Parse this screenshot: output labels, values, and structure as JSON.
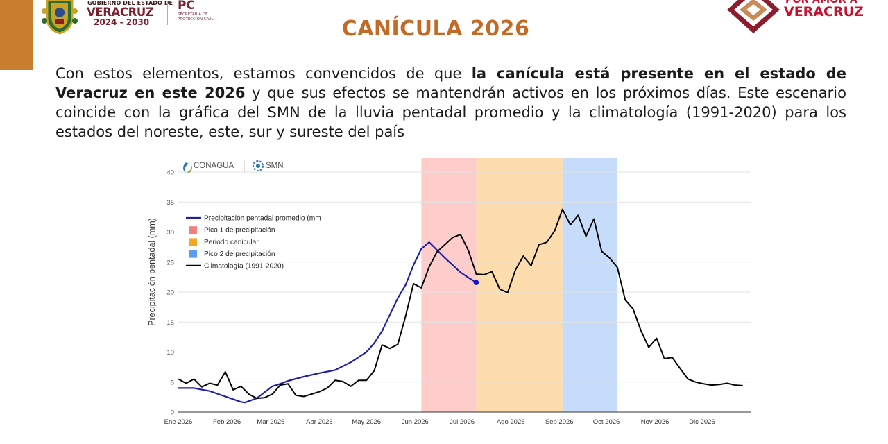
{
  "colors": {
    "accent_bar": "#c87d2f",
    "title": "#c46a27",
    "gov_wine": "#7b1e2e",
    "campaign_red": "#c8102e",
    "series_avg": "#1f1fa8",
    "series_clim": "#000000",
    "band_peak1": "#ffcccc",
    "band_canicular": "#fddcae",
    "band_peak2": "#c7dcfb"
  },
  "header": {
    "gov_small": "GOBIERNO DEL ESTADO DE",
    "gov_big": "VERACRUZ",
    "gov_years": "2024 - 2030",
    "pc_title": "PC",
    "pc_sub_1": "SECRETARÍA DE",
    "pc_sub_2": "PROTECCIÓN CIVIL",
    "campaign_top": "POR AMOR A",
    "campaign_bottom": "VERACRUZ"
  },
  "page": {
    "title": "CANÍCULA 2026",
    "para_1": "Con estos elementos, estamos convencidos de que ",
    "para_bold": "la canícula está presente en el estado de Veracruz en este 2026",
    "para_2": " y que sus efectos se mantendrán activos en los próximos días. Este escenario coincide con la gráfica del SMN de la lluvia pentadal promedio y la climatología (1991-2020) para los estados del noreste, este, sur y sureste del país"
  },
  "chart_data": {
    "type": "line",
    "logos": {
      "conagua": "CONAGUA",
      "smn": "SMN"
    },
    "ylabel": "Precipitación pentadal (mm)",
    "ylim": [
      0,
      40
    ],
    "yticks": [
      0,
      5,
      10,
      15,
      20,
      25,
      30,
      35,
      40
    ],
    "xlim": [
      0,
      73
    ],
    "x_unit": "pentad index (0 = Ene 2026)",
    "xticks": [
      {
        "x": 0,
        "label": "Ene 2026"
      },
      {
        "x": 6.2,
        "label": "Feb 2026"
      },
      {
        "x": 11.8,
        "label": "Mar 2026"
      },
      {
        "x": 18,
        "label": "Abr 2026"
      },
      {
        "x": 24,
        "label": "May 2026"
      },
      {
        "x": 30.2,
        "label": "Jun 2026"
      },
      {
        "x": 36.2,
        "label": "Jul 2026"
      },
      {
        "x": 42.4,
        "label": "Ago 2026"
      },
      {
        "x": 48.6,
        "label": "Sep 2026"
      },
      {
        "x": 54.6,
        "label": "Oct 2026"
      },
      {
        "x": 60.8,
        "label": "Nov 2026"
      },
      {
        "x": 66.8,
        "label": "Dic 2026"
      }
    ],
    "grid": true,
    "legend_position": "top-left",
    "bands": [
      {
        "name": "Pico 1 de precipitación",
        "from": 31,
        "to": 38,
        "color": "#ffcccc"
      },
      {
        "name": "Periodo canicular",
        "from": 38,
        "to": 49,
        "color": "#fddcae"
      },
      {
        "name": "Pico 2 de precipitación",
        "from": 49,
        "to": 56,
        "color": "#c7dcfb"
      }
    ],
    "legend": [
      {
        "label": "Precipitación pentadal promedio (mm",
        "kind": "line",
        "color": "#1f1fa8"
      },
      {
        "label": "Pico 1 de precipitación",
        "kind": "box",
        "color": "#f08080"
      },
      {
        "label": "Periodo canicular",
        "kind": "box",
        "color": "#f5a623"
      },
      {
        "label": "Pico 2 de precipitación",
        "kind": "box",
        "color": "#5b9bef"
      },
      {
        "label": "Climatología (1991-2020)",
        "kind": "line",
        "color": "#000000"
      }
    ],
    "series": [
      {
        "name": "Precipitación pentadal promedio (mm",
        "color": "#1f1fa8",
        "x": [
          0,
          2,
          4,
          6,
          8,
          8.5,
          10,
          11,
          12,
          13,
          14,
          16,
          18,
          20,
          22,
          24,
          25,
          26,
          28,
          29,
          30,
          31,
          32,
          33,
          34,
          35,
          36,
          37,
          38
        ],
        "y": [
          4.0,
          4.0,
          3.5,
          2.6,
          1.7,
          1.6,
          2.3,
          3.3,
          4.3,
          4.7,
          5.2,
          5.9,
          6.5,
          7.0,
          8.3,
          10.0,
          11.5,
          13.5,
          19.0,
          21.2,
          24.5,
          27.2,
          28.3,
          27.0,
          25.7,
          24.5,
          23.3,
          22.4,
          21.6
        ],
        "end_marker": true
      },
      {
        "name": "Climatología (1991-2020)",
        "color": "#000000",
        "x": [
          0,
          1,
          2,
          3,
          4,
          5,
          6,
          7,
          8,
          9,
          10,
          11,
          12,
          13,
          14,
          15,
          16,
          17,
          18,
          19,
          20,
          21,
          22,
          23,
          24,
          25,
          26,
          27,
          28,
          29,
          30,
          31,
          32,
          33,
          34,
          35,
          36,
          37,
          38,
          39,
          40,
          41,
          42,
          43,
          44,
          45,
          46,
          47,
          48,
          49,
          50,
          51,
          52,
          53,
          54,
          55,
          56,
          57,
          58,
          59,
          60,
          61,
          62,
          63,
          64,
          65,
          66,
          67,
          68,
          69,
          70,
          71,
          72
        ],
        "y": [
          5.5,
          4.8,
          5.5,
          4.2,
          4.8,
          4.5,
          6.7,
          3.7,
          4.3,
          3.0,
          2.3,
          2.4,
          3.0,
          4.5,
          4.7,
          2.8,
          2.6,
          3.0,
          3.4,
          4.0,
          5.3,
          5.1,
          4.3,
          5.3,
          5.3,
          6.9,
          11.2,
          10.6,
          11.3,
          16.0,
          21.4,
          20.7,
          24.2,
          26.7,
          27.9,
          29.1,
          29.6,
          26.9,
          23.0,
          22.9,
          23.4,
          20.5,
          19.9,
          23.7,
          26.0,
          24.4,
          27.9,
          28.3,
          30.2,
          33.8,
          31.2,
          32.8,
          29.3,
          32.2,
          26.8,
          25.7,
          24.1,
          18.7,
          17.2,
          13.6,
          10.8,
          12.3,
          8.9,
          9.1,
          7.3,
          5.5,
          5.0,
          4.7,
          4.5,
          4.6,
          4.8,
          4.5,
          4.4
        ]
      }
    ]
  }
}
